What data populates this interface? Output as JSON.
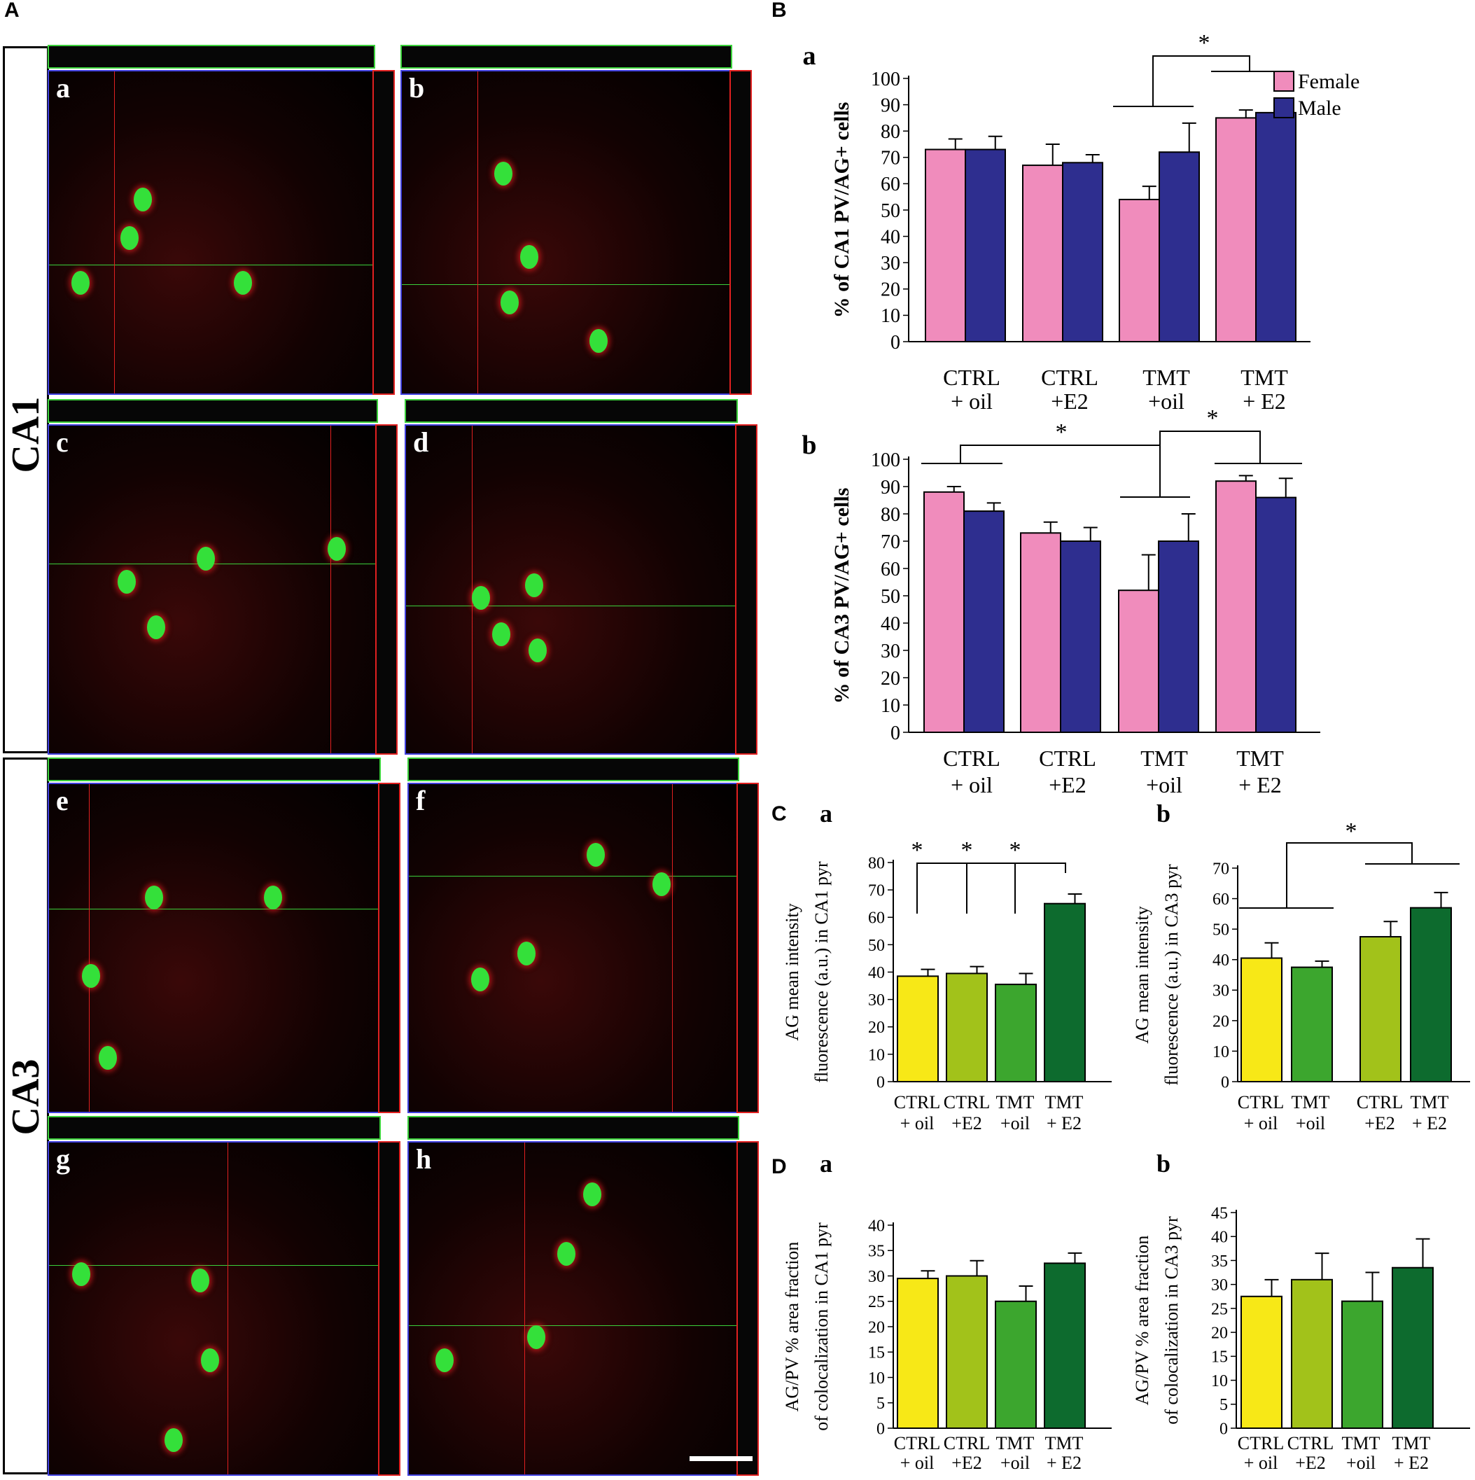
{
  "figure": {
    "panel_A": "A",
    "panel_B": "B",
    "panel_C": "C",
    "panel_D": "D",
    "region_CA1": "CA1",
    "region_CA3": "CA3",
    "micro_letters": [
      "a",
      "b",
      "c",
      "d",
      "e",
      "f",
      "g",
      "h"
    ],
    "colors": {
      "female": "#f08cbc",
      "male": "#2e2e8f",
      "ctrl_oil": "#f7e817",
      "ctrl_e2": "#a2c21a",
      "tmt_oil": "#3ca62e",
      "tmt_e2": "#0d6b2e",
      "micro_bg": "#000000",
      "ortho_green": "#3bd13b",
      "ortho_red": "#e02020",
      "ortho_blue": "#4040e0"
    }
  },
  "chart_data": [
    {
      "id": "Ba",
      "sublabel": "a",
      "type": "bar",
      "ylabel": "% of CA1 PV/AG+ cells",
      "ylim": [
        0,
        100
      ],
      "yticks": [
        0,
        10,
        20,
        30,
        40,
        50,
        60,
        70,
        80,
        90,
        100
      ],
      "categories": [
        [
          "CTRL",
          "+ oil"
        ],
        [
          "CTRL",
          "+E2"
        ],
        [
          "TMT",
          "+oil"
        ],
        [
          "TMT",
          "+ E2"
        ]
      ],
      "series": [
        {
          "name": "Female",
          "color": "#f08cbc",
          "values": [
            73,
            67,
            54,
            85
          ],
          "errors": [
            4,
            8,
            5,
            3
          ]
        },
        {
          "name": "Male",
          "color": "#2e2e8f",
          "values": [
            73,
            68,
            72,
            87
          ],
          "errors": [
            5,
            3,
            11,
            4
          ]
        }
      ],
      "legend": [
        "Female",
        "Male"
      ],
      "significance": [
        "*"
      ]
    },
    {
      "id": "Bb",
      "sublabel": "b",
      "type": "bar",
      "ylabel": "% of CA3 PV/AG+ cells",
      "ylim": [
        0,
        100
      ],
      "yticks": [
        0,
        10,
        20,
        30,
        40,
        50,
        60,
        70,
        80,
        90,
        100
      ],
      "categories": [
        [
          "CTRL",
          "+ oil"
        ],
        [
          "CTRL",
          "+E2"
        ],
        [
          "TMT",
          "+oil"
        ],
        [
          "TMT",
          "+ E2"
        ]
      ],
      "series": [
        {
          "name": "Female",
          "color": "#f08cbc",
          "values": [
            88,
            73,
            52,
            92
          ],
          "errors": [
            2,
            4,
            13,
            2
          ]
        },
        {
          "name": "Male",
          "color": "#2e2e8f",
          "values": [
            81,
            70,
            70,
            86
          ],
          "errors": [
            3,
            5,
            10,
            7
          ]
        }
      ],
      "significance": [
        "*",
        "*"
      ]
    },
    {
      "id": "Ca",
      "sublabel": "a",
      "type": "bar",
      "ylabel": [
        "AG mean intensity",
        "fluorescence (a.u.) in CA1 pyr"
      ],
      "ylim": [
        0,
        80
      ],
      "yticks": [
        0,
        10,
        20,
        30,
        40,
        50,
        60,
        70,
        80
      ],
      "categories": [
        [
          "CTRL",
          "+ oil"
        ],
        [
          "CTRL",
          "+E2"
        ],
        [
          "TMT",
          "+oil"
        ],
        [
          "TMT",
          "+ E2"
        ]
      ],
      "values": [
        38.5,
        39.5,
        35.5,
        65
      ],
      "errors": [
        2.5,
        2.5,
        4,
        3.5
      ],
      "colors": [
        "#f7e817",
        "#a2c21a",
        "#3ca62e",
        "#0d6b2e"
      ],
      "significance": [
        "*",
        "*",
        "*"
      ]
    },
    {
      "id": "Cb",
      "sublabel": "b",
      "type": "bar",
      "ylabel": [
        "AG  mean intensity",
        "fluorescence (a.u.) in CA3 pyr"
      ],
      "ylim": [
        0,
        70
      ],
      "yticks": [
        0,
        10,
        20,
        30,
        40,
        50,
        60,
        70
      ],
      "categories": [
        [
          "CTRL",
          "+ oil"
        ],
        [
          "TMT",
          "+oil"
        ],
        [
          "CTRL",
          "+E2"
        ],
        [
          "TMT",
          "+ E2"
        ]
      ],
      "values": [
        40.5,
        37.5,
        47.5,
        57
      ],
      "errors": [
        5,
        2,
        5,
        5
      ],
      "colors": [
        "#f7e817",
        "#3ca62e",
        "#a2c21a",
        "#0d6b2e"
      ],
      "significance": [
        "*"
      ]
    },
    {
      "id": "Da",
      "sublabel": "a",
      "type": "bar",
      "ylabel": [
        "AG/PV % area fraction",
        "of colocalization in CA1 pyr"
      ],
      "ylim": [
        0,
        40
      ],
      "yticks": [
        0,
        5,
        10,
        15,
        20,
        25,
        30,
        35,
        40
      ],
      "categories": [
        [
          "CTRL",
          "+ oil"
        ],
        [
          "CTRL",
          "+E2"
        ],
        [
          "TMT",
          "+oil"
        ],
        [
          "TMT",
          "+ E2"
        ]
      ],
      "values": [
        29.5,
        30,
        25,
        32.5
      ],
      "errors": [
        1.5,
        3,
        3,
        2
      ],
      "colors": [
        "#f7e817",
        "#a2c21a",
        "#3ca62e",
        "#0d6b2e"
      ]
    },
    {
      "id": "Db",
      "sublabel": "b",
      "type": "bar",
      "ylabel": [
        "AG/PV % area fraction",
        "of colocalization in CA3 pyr"
      ],
      "ylim": [
        0,
        45
      ],
      "yticks": [
        0,
        5,
        10,
        15,
        20,
        25,
        30,
        35,
        40,
        45
      ],
      "categories": [
        [
          "CTRL",
          "+ oil"
        ],
        [
          "CTRL",
          "+E2"
        ],
        [
          "TMT",
          "+oil"
        ],
        [
          "TMT",
          "+ E2"
        ]
      ],
      "values": [
        27.5,
        31,
        26.5,
        33.5
      ],
      "errors": [
        3.5,
        5.5,
        6,
        6
      ],
      "colors": [
        "#f7e817",
        "#a2c21a",
        "#3ca62e",
        "#0d6b2e"
      ]
    }
  ]
}
